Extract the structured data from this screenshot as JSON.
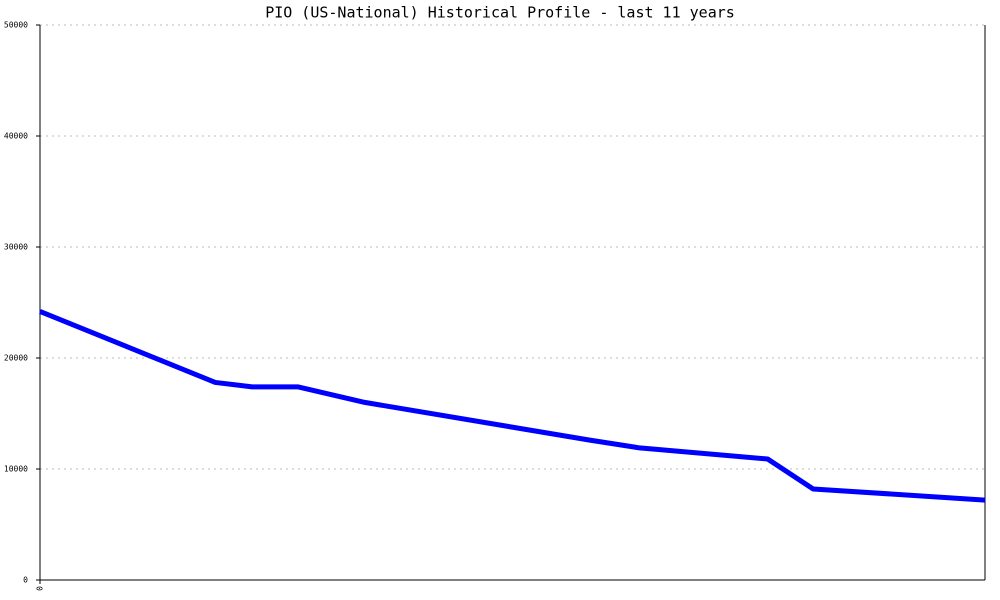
{
  "chart_data": {
    "type": "line",
    "title": "PIO (US-National) Historical Profile - last 11 years",
    "x": [
      0,
      2.04,
      2.47,
      3.0,
      3.78,
      6.4,
      6.98,
      8.47,
      9.0,
      11
    ],
    "series": [
      {
        "color": "#0000ff",
        "values": [
          24200,
          17800,
          17400,
          17400,
          16000,
          12600,
          11900,
          10900,
          8200,
          7200
        ]
      }
    ],
    "xlim": [
      0,
      11
    ],
    "xticks": [
      0
    ],
    "ylim": [
      0,
      50000
    ],
    "yticks": [
      0,
      10000,
      20000,
      30000,
      40000,
      50000
    ],
    "grid": true
  }
}
